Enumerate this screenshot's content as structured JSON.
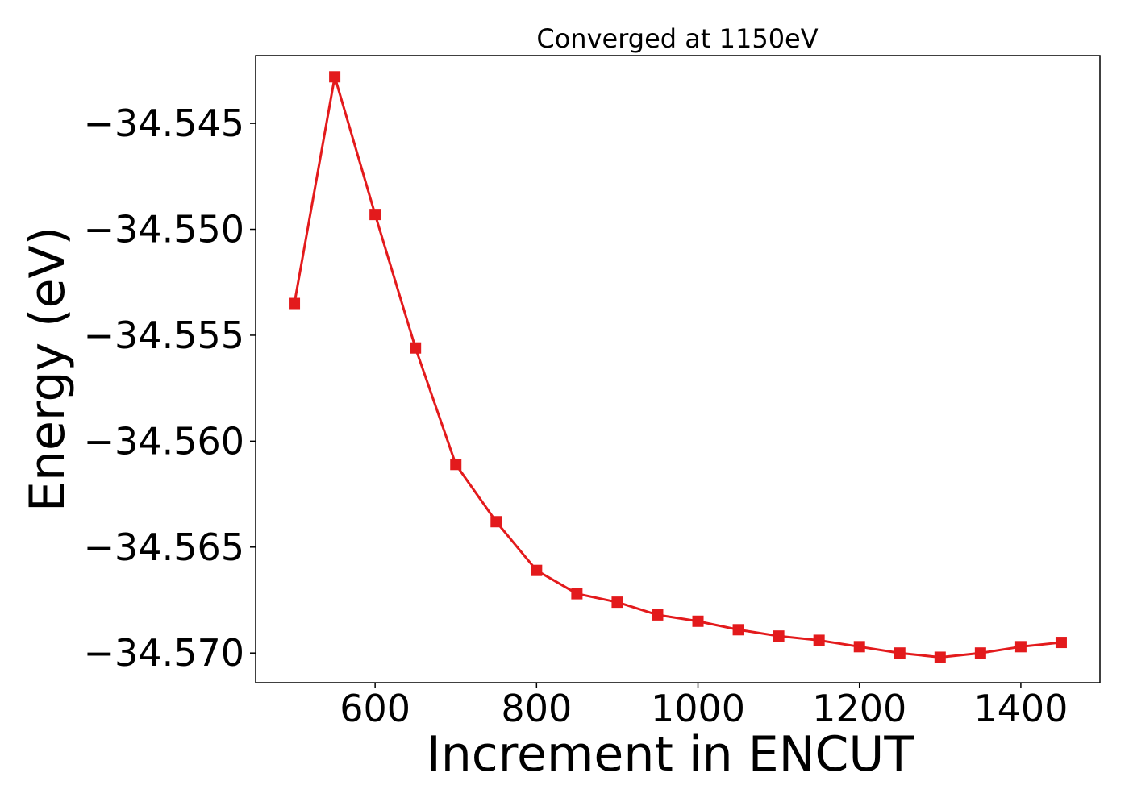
{
  "chart_data": {
    "type": "line",
    "title": "Converged at 1150eV",
    "xlabel": "Increment in ENCUT",
    "ylabel": "Energy (eV)",
    "x_ticks": [
      600,
      800,
      1000,
      1200,
      1400
    ],
    "x_tick_labels": [
      "600",
      "800",
      "1000",
      "1200",
      "1400"
    ],
    "y_ticks": [
      -34.545,
      -34.55,
      -34.555,
      -34.56,
      -34.565,
      -34.57
    ],
    "y_tick_labels": [
      "−34.545",
      "−34.550",
      "−34.555",
      "−34.560",
      "−34.565",
      "−34.570"
    ],
    "xlim": [
      452,
      1498
    ],
    "ylim": [
      -34.5714,
      -34.5418
    ],
    "grid": false,
    "series": [
      {
        "color": "#e31a1c",
        "marker": "square",
        "x": [
          500,
          550,
          600,
          650,
          700,
          750,
          800,
          850,
          900,
          950,
          1000,
          1050,
          1100,
          1150,
          1200,
          1250,
          1300,
          1350,
          1400,
          1450
        ],
        "y": [
          -34.5535,
          -34.5428,
          -34.5493,
          -34.5556,
          -34.5611,
          -34.5638,
          -34.5661,
          -34.5672,
          -34.5676,
          -34.5682,
          -34.5685,
          -34.5689,
          -34.5692,
          -34.5694,
          -34.5697,
          -34.57,
          -34.5702,
          -34.57,
          -34.5697,
          -34.5695
        ]
      }
    ]
  }
}
